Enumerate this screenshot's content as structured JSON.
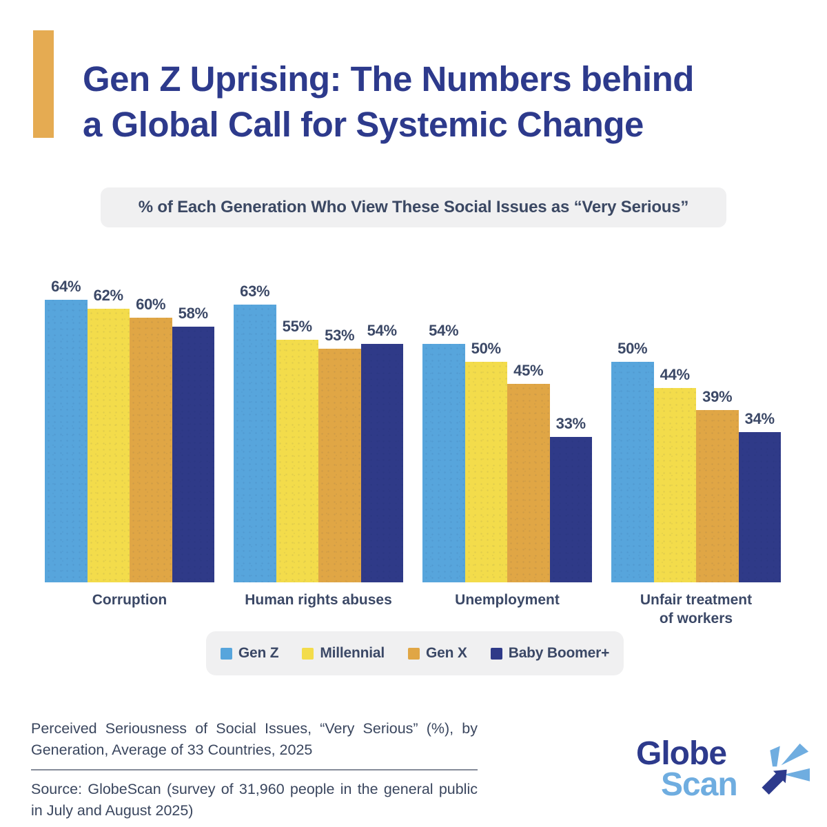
{
  "title": {
    "lines": [
      "Gen Z Uprising: The Numbers behind",
      "a Global Call for Systemic Change"
    ],
    "color": "#2D3A8C",
    "accent_color": "#E5AB52"
  },
  "subtitle": "% of Each Generation Who View These Social Issues as “Very Serious”",
  "chart_data": {
    "type": "bar",
    "title": "% of Each Generation Who View These Social Issues as “Very Serious”",
    "categories": [
      "Corruption",
      "Human rights abuses",
      "Unemployment",
      "Unfair treatment of workers"
    ],
    "category_lines": [
      [
        "Corruption"
      ],
      [
        "Human rights abuses"
      ],
      [
        "Unemployment"
      ],
      [
        "Unfair treatment",
        "of workers"
      ]
    ],
    "series": [
      {
        "name": "Gen Z",
        "color": "#57A5DC",
        "values": [
          64,
          63,
          54,
          50
        ]
      },
      {
        "name": "Millennial",
        "color": "#F3DC4B",
        "values": [
          62,
          55,
          50,
          44
        ]
      },
      {
        "name": "Gen X",
        "color": "#E0A645",
        "values": [
          60,
          53,
          45,
          39
        ]
      },
      {
        "name": "Baby Boomer+",
        "color": "#2F3A88",
        "values": [
          58,
          54,
          33,
          34
        ]
      }
    ],
    "value_suffix": "%",
    "ylim": [
      0,
      64
    ],
    "grid": false,
    "legend_position": "bottom",
    "value_label_color": "#3B4866"
  },
  "footnote": {
    "description": "Perceived  Seriousness  of  Social  Issues, “Very Serious” (%), by Generation, Average of 33 Countries, 2025",
    "source": "Source: GlobeScan (survey of 31,960 people in the general public in July and August 2025)"
  },
  "logo": {
    "word1": "Globe",
    "word2": "Scan",
    "navy": "#2D3A8C",
    "light_blue": "#6FADE0"
  }
}
